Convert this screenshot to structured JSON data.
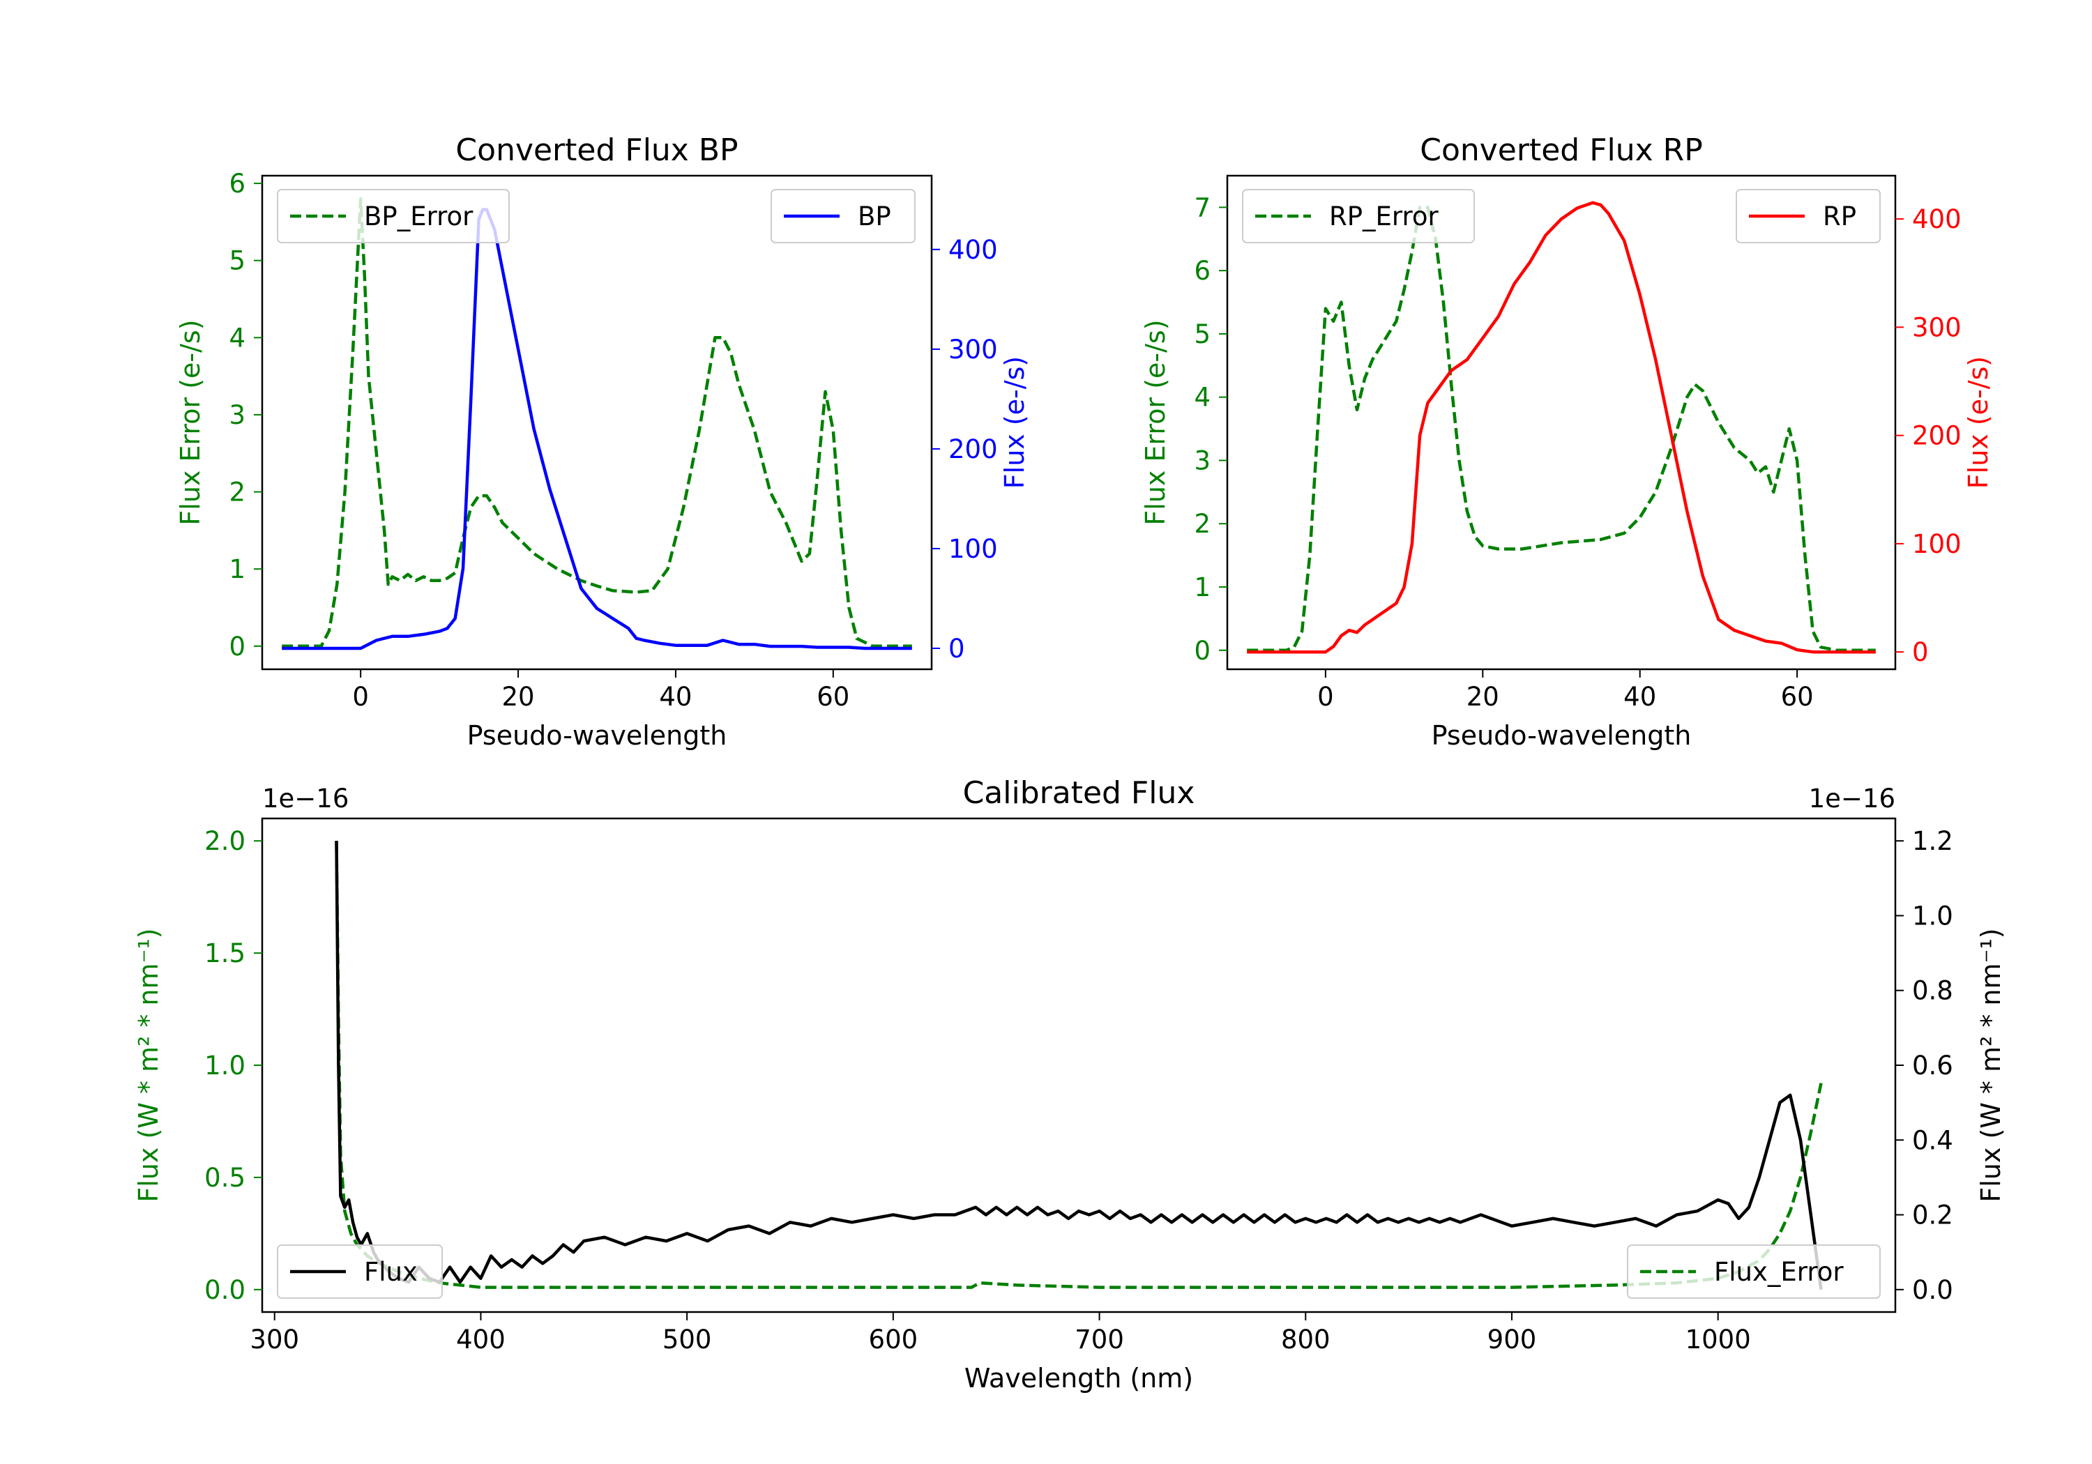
{
  "colors": {
    "error": "#008000",
    "bp": "#0000ff",
    "rp": "#ff0000",
    "flux": "#000000"
  },
  "chart_data": [
    {
      "type": "line",
      "title": "Converted Flux BP",
      "xlabel": "Pseudo-wavelength",
      "ylabel_left": "Flux Error (e-/s)",
      "ylabel_right": "Flux (e-/s)",
      "xlim": [
        -12.5,
        72.5
      ],
      "xticks": [
        0,
        20,
        40,
        60
      ],
      "ylim_left": [
        -0.3,
        6.1
      ],
      "yticks_left": [
        0,
        1,
        2,
        3,
        4,
        5,
        6
      ],
      "ylim_right": [
        -21,
        474
      ],
      "yticks_right": [
        0,
        100,
        200,
        300,
        400
      ],
      "left_color": "#008000",
      "right_color": "#0000ff",
      "legend_left": "BP_Error",
      "legend_right": "BP",
      "series": [
        {
          "name": "BP_Error",
          "axis": "left",
          "style": "dashed",
          "color": "#008000",
          "x": [
            -10,
            -5,
            -4,
            -3,
            -2,
            -1,
            0,
            0.5,
            1,
            2,
            3,
            3.5,
            4,
            5,
            6,
            7,
            8,
            9,
            10,
            11,
            12,
            13,
            14,
            15,
            16,
            17,
            18,
            20,
            22,
            25,
            28,
            30,
            32,
            35,
            37,
            39,
            41,
            43,
            45,
            46,
            47,
            48,
            50,
            52,
            54,
            56,
            57,
            58,
            59,
            60,
            61,
            62,
            63,
            65,
            70
          ],
          "y": [
            0,
            0,
            0.2,
            0.8,
            2,
            3.8,
            5.8,
            4.8,
            3.5,
            2.5,
            1.5,
            0.8,
            0.9,
            0.85,
            0.93,
            0.85,
            0.9,
            0.85,
            0.85,
            0.88,
            0.95,
            1.4,
            1.8,
            1.95,
            1.95,
            1.8,
            1.6,
            1.4,
            1.2,
            1.0,
            0.85,
            0.78,
            0.72,
            0.7,
            0.72,
            1.0,
            1.8,
            2.8,
            4.0,
            4.0,
            3.8,
            3.4,
            2.8,
            2.0,
            1.6,
            1.1,
            1.2,
            2.2,
            3.3,
            2.8,
            1.5,
            0.5,
            0.1,
            0,
            0
          ]
        },
        {
          "name": "BP",
          "axis": "right",
          "style": "solid",
          "color": "#0000ff",
          "x": [
            -10,
            -5,
            -2,
            0,
            2,
            4,
            6,
            8,
            10,
            11,
            12,
            13,
            14,
            15,
            15.5,
            16,
            17,
            18,
            20,
            22,
            24,
            26,
            28,
            30,
            31,
            32,
            33,
            34,
            35,
            36,
            38,
            40,
            42,
            44,
            46,
            48,
            50,
            52,
            54,
            56,
            58,
            60,
            62,
            64,
            66,
            68,
            70
          ],
          "y": [
            0,
            0,
            0,
            0,
            8,
            12,
            12,
            14,
            17,
            20,
            30,
            80,
            250,
            430,
            440,
            440,
            420,
            380,
            300,
            220,
            160,
            110,
            60,
            40,
            35,
            30,
            25,
            20,
            10,
            8,
            5,
            3,
            3,
            3,
            8,
            4,
            4,
            2,
            2,
            2,
            1,
            1,
            1,
            0,
            0,
            0,
            0
          ]
        }
      ]
    },
    {
      "type": "line",
      "title": "Converted Flux RP",
      "xlabel": "Pseudo-wavelength",
      "ylabel_left": "Flux Error (e-/s)",
      "ylabel_right": "Flux (e-/s)",
      "xlim": [
        -12.5,
        72.5
      ],
      "xticks": [
        0,
        20,
        40,
        60
      ],
      "ylim_left": [
        -0.3,
        7.5
      ],
      "yticks_left": [
        0,
        1,
        2,
        3,
        4,
        5,
        6,
        7
      ],
      "ylim_right": [
        -16,
        440
      ],
      "yticks_right": [
        0,
        100,
        200,
        300,
        400
      ],
      "left_color": "#008000",
      "right_color": "#ff0000",
      "legend_left": "RP_Error",
      "legend_right": "RP",
      "series": [
        {
          "name": "RP_Error",
          "axis": "left",
          "style": "dashed",
          "color": "#008000",
          "x": [
            -10,
            -5,
            -4,
            -3,
            -2,
            -1,
            0,
            1,
            2,
            3,
            4,
            5,
            6,
            7,
            8,
            9,
            10,
            11,
            12,
            13,
            14,
            15,
            16,
            17,
            18,
            19,
            20,
            22,
            25,
            30,
            35,
            38,
            40,
            42,
            44,
            45,
            46,
            47,
            48,
            50,
            52,
            54,
            55,
            56,
            57,
            58,
            59,
            60,
            61,
            62,
            63,
            65,
            70
          ],
          "y": [
            0,
            0,
            0.05,
            0.3,
            1.5,
            3.5,
            5.4,
            5.2,
            5.5,
            4.5,
            3.8,
            4.3,
            4.6,
            4.8,
            5.0,
            5.2,
            5.7,
            6.3,
            7.0,
            7.0,
            6.5,
            5.5,
            4.2,
            3.0,
            2.2,
            1.8,
            1.65,
            1.6,
            1.6,
            1.7,
            1.75,
            1.85,
            2.1,
            2.5,
            3.2,
            3.6,
            4.0,
            4.2,
            4.1,
            3.6,
            3.2,
            3.0,
            2.8,
            2.9,
            2.5,
            3.0,
            3.5,
            3.0,
            1.5,
            0.3,
            0.05,
            0,
            0
          ]
        },
        {
          "name": "RP",
          "axis": "right",
          "style": "solid",
          "color": "#ff0000",
          "x": [
            -10,
            -5,
            -2,
            0,
            1,
            2,
            3,
            4,
            5,
            6,
            7,
            8,
            9,
            10,
            11,
            12,
            13,
            14,
            16,
            18,
            20,
            22,
            24,
            26,
            28,
            30,
            32,
            34,
            35,
            36,
            38,
            40,
            42,
            44,
            46,
            48,
            50,
            52,
            54,
            56,
            58,
            60,
            62,
            64,
            66,
            68,
            70
          ],
          "y": [
            0,
            0,
            0,
            0,
            5,
            15,
            20,
            18,
            25,
            30,
            35,
            40,
            45,
            60,
            100,
            200,
            230,
            240,
            260,
            270,
            290,
            310,
            340,
            360,
            385,
            400,
            410,
            415,
            413,
            405,
            380,
            330,
            270,
            200,
            130,
            70,
            30,
            20,
            15,
            10,
            8,
            2,
            0,
            0,
            0,
            0,
            0
          ]
        }
      ]
    },
    {
      "type": "line",
      "title": "Calibrated Flux",
      "xlabel": "Wavelength (nm)",
      "ylabel_left": "Flux (W * m² * nm⁻¹)",
      "ylabel_right": "Flux (W * m² * nm⁻¹)",
      "offset_left": "1e−16",
      "offset_right": "1e−16",
      "xlim": [
        294,
        1086
      ],
      "xticks": [
        300,
        400,
        500,
        600,
        700,
        800,
        900,
        1000
      ],
      "ylim_left": [
        -0.1,
        2.1
      ],
      "yticks_left": [
        0.0,
        0.5,
        1.0,
        1.5,
        2.0
      ],
      "ytick_labels_left": [
        "0.0",
        "0.5",
        "1.0",
        "1.5",
        "2.0"
      ],
      "ylim_right": [
        -0.06,
        1.26
      ],
      "yticks_right": [
        0.0,
        0.2,
        0.4,
        0.6,
        0.8,
        1.0,
        1.2
      ],
      "ytick_labels_right": [
        "0.0",
        "0.2",
        "0.4",
        "0.6",
        "0.8",
        "1.0",
        "1.2"
      ],
      "left_color": "#008000",
      "right_color": "#000000",
      "legend_left": "Flux",
      "legend_right": "Flux_Error",
      "series": [
        {
          "name": "Flux_Error",
          "axis": "left",
          "style": "dashed",
          "color": "#008000",
          "x": [
            330,
            331,
            332,
            334,
            337,
            340,
            345,
            350,
            360,
            370,
            380,
            400,
            450,
            500,
            600,
            638,
            642,
            660,
            700,
            800,
            900,
            950,
            980,
            1000,
            1010,
            1020,
            1025,
            1030,
            1035,
            1040,
            1045,
            1050
          ],
          "y": [
            2.0,
            1.2,
            0.6,
            0.35,
            0.25,
            0.2,
            0.15,
            0.12,
            0.08,
            0.05,
            0.03,
            0.01,
            0.01,
            0.01,
            0.01,
            0.01,
            0.03,
            0.02,
            0.01,
            0.01,
            0.01,
            0.02,
            0.03,
            0.05,
            0.08,
            0.13,
            0.18,
            0.25,
            0.35,
            0.5,
            0.7,
            0.92
          ]
        },
        {
          "name": "Flux",
          "axis": "right",
          "style": "solid",
          "color": "#000000",
          "x": [
            330,
            331,
            332,
            334,
            336,
            338,
            340,
            342,
            345,
            348,
            350,
            355,
            360,
            365,
            370,
            375,
            380,
            385,
            390,
            395,
            400,
            405,
            410,
            415,
            420,
            425,
            430,
            435,
            440,
            445,
            450,
            460,
            470,
            480,
            490,
            500,
            510,
            520,
            530,
            540,
            550,
            560,
            570,
            580,
            590,
            600,
            610,
            620,
            630,
            640,
            645,
            650,
            655,
            660,
            665,
            670,
            675,
            680,
            685,
            690,
            695,
            700,
            705,
            710,
            715,
            720,
            725,
            730,
            735,
            740,
            745,
            750,
            755,
            760,
            765,
            770,
            775,
            780,
            785,
            790,
            795,
            800,
            805,
            810,
            815,
            820,
            825,
            830,
            835,
            840,
            845,
            850,
            855,
            860,
            865,
            870,
            875,
            880,
            885,
            890,
            895,
            900,
            910,
            920,
            930,
            940,
            950,
            960,
            970,
            980,
            990,
            1000,
            1005,
            1010,
            1015,
            1020,
            1025,
            1030,
            1035,
            1040,
            1045,
            1050
          ],
          "y": [
            1.2,
            0.6,
            0.25,
            0.22,
            0.24,
            0.18,
            0.14,
            0.12,
            0.15,
            0.1,
            0.08,
            0.05,
            0.03,
            0.02,
            0.06,
            0.03,
            0.02,
            0.06,
            0.02,
            0.06,
            0.03,
            0.09,
            0.06,
            0.08,
            0.06,
            0.09,
            0.07,
            0.09,
            0.12,
            0.1,
            0.13,
            0.14,
            0.12,
            0.14,
            0.13,
            0.15,
            0.13,
            0.16,
            0.17,
            0.15,
            0.18,
            0.17,
            0.19,
            0.18,
            0.19,
            0.2,
            0.19,
            0.2,
            0.2,
            0.22,
            0.2,
            0.22,
            0.2,
            0.22,
            0.2,
            0.22,
            0.2,
            0.21,
            0.19,
            0.21,
            0.2,
            0.21,
            0.19,
            0.21,
            0.19,
            0.2,
            0.18,
            0.2,
            0.18,
            0.2,
            0.18,
            0.2,
            0.18,
            0.2,
            0.18,
            0.2,
            0.18,
            0.2,
            0.18,
            0.2,
            0.18,
            0.19,
            0.18,
            0.19,
            0.18,
            0.2,
            0.18,
            0.2,
            0.18,
            0.19,
            0.18,
            0.19,
            0.18,
            0.19,
            0.18,
            0.19,
            0.18,
            0.19,
            0.2,
            0.19,
            0.18,
            0.17,
            0.18,
            0.19,
            0.18,
            0.17,
            0.18,
            0.19,
            0.17,
            0.2,
            0.21,
            0.24,
            0.23,
            0.19,
            0.22,
            0.3,
            0.4,
            0.5,
            0.52,
            0.4,
            0.2,
            0.0
          ]
        }
      ]
    }
  ]
}
